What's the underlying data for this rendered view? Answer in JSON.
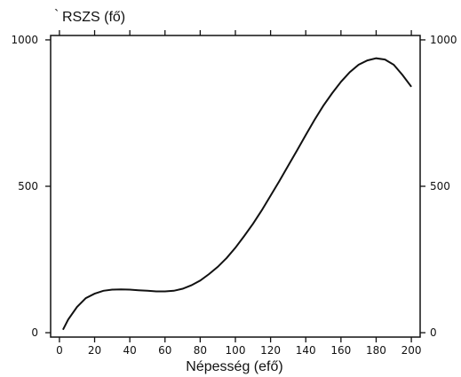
{
  "chart_data": {
    "type": "line",
    "title": "",
    "xlabel": "Népesség (efő)",
    "ylabel": "RSZS (fő)",
    "xlim": [
      -5,
      205
    ],
    "ylim": [
      -15,
      1015
    ],
    "x_ticks": [
      0,
      20,
      40,
      60,
      80,
      100,
      120,
      140,
      160,
      180,
      200
    ],
    "x_tick_labels": [
      "0",
      "20",
      "40",
      "60",
      "80",
      "100",
      "120",
      "140",
      "160",
      "180",
      "200"
    ],
    "y_ticks": [
      0,
      500,
      1000
    ],
    "y_tick_labels": [
      "0",
      "500",
      "1000"
    ],
    "grid": false,
    "series": [
      {
        "x": [
          2,
          5,
          10,
          15,
          20,
          25,
          30,
          35,
          40,
          45,
          50,
          55,
          60,
          65,
          70,
          75,
          80,
          85,
          90,
          95,
          100,
          105,
          110,
          115,
          120,
          125,
          130,
          135,
          140,
          145,
          150,
          155,
          160,
          165,
          170,
          175,
          180,
          185,
          190,
          195,
          200
        ],
        "values": [
          10,
          45,
          88,
          118,
          133,
          143,
          147,
          148,
          147,
          145,
          143,
          141,
          141,
          143,
          150,
          162,
          178,
          200,
          225,
          255,
          290,
          330,
          372,
          418,
          468,
          518,
          570,
          622,
          675,
          727,
          775,
          818,
          857,
          890,
          915,
          930,
          937,
          933,
          915,
          880,
          840
        ]
      }
    ]
  }
}
